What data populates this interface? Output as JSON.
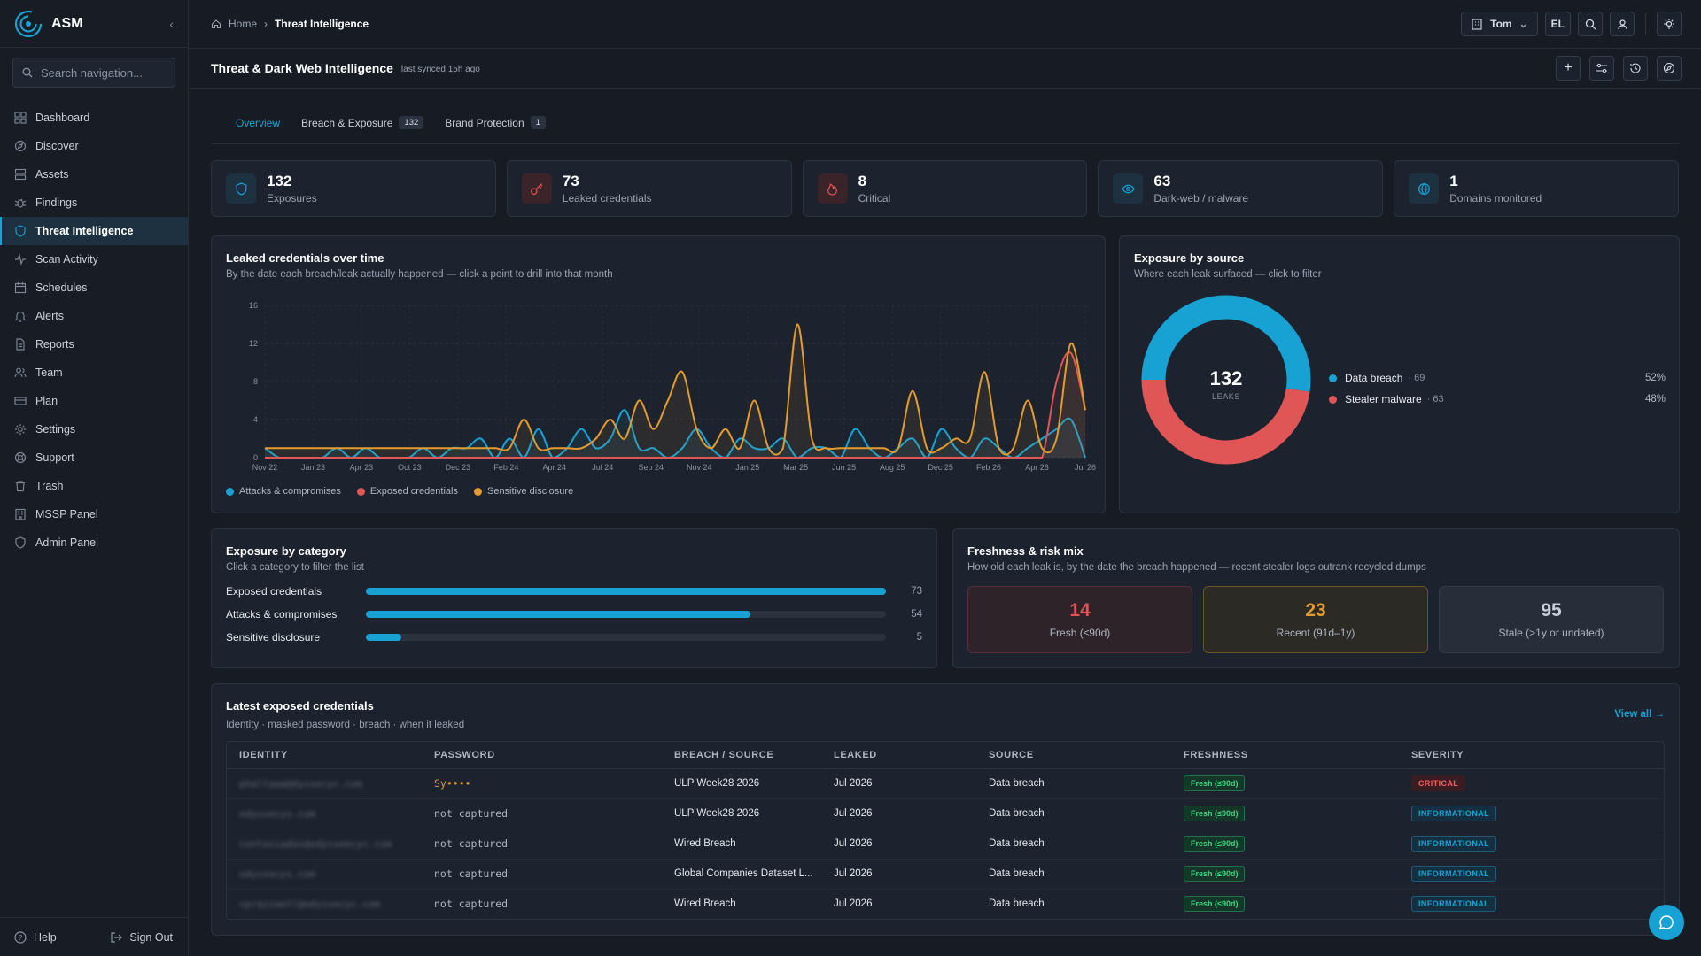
{
  "app": {
    "name": "ASM",
    "search_placeholder": "Search navigation..."
  },
  "sidebar": {
    "items": [
      {
        "label": "Dashboard",
        "icon": "grid-icon"
      },
      {
        "label": "Discover",
        "icon": "compass-icon"
      },
      {
        "label": "Assets",
        "icon": "server-icon"
      },
      {
        "label": "Findings",
        "icon": "bug-icon"
      },
      {
        "label": "Threat Intelligence",
        "icon": "shield-icon",
        "active": true
      },
      {
        "label": "Scan Activity",
        "icon": "activity-icon"
      },
      {
        "label": "Schedules",
        "icon": "calendar-icon"
      },
      {
        "label": "Alerts",
        "icon": "bell-icon"
      },
      {
        "label": "Reports",
        "icon": "file-icon"
      },
      {
        "label": "Team",
        "icon": "users-icon"
      },
      {
        "label": "Plan",
        "icon": "card-icon"
      },
      {
        "label": "Settings",
        "icon": "gear-icon"
      },
      {
        "label": "Support",
        "icon": "lifebuoy-icon"
      },
      {
        "label": "Trash",
        "icon": "trash-icon"
      },
      {
        "label": "MSSP Panel",
        "icon": "building-icon"
      },
      {
        "label": "Admin Panel",
        "icon": "shield-icon"
      }
    ],
    "help": "Help",
    "signout": "Sign Out"
  },
  "topbar": {
    "breadcrumb_home": "Home",
    "breadcrumb_current": "Threat Intelligence",
    "org": "Tom",
    "user_initials": "EL"
  },
  "page": {
    "title": "Threat & Dark Web Intelligence",
    "synced": "last synced 15h ago"
  },
  "tabs": [
    {
      "label": "Overview",
      "count": null,
      "active": true
    },
    {
      "label": "Breach & Exposure",
      "count": "132"
    },
    {
      "label": "Brand Protection",
      "count": "1"
    }
  ],
  "kpis": [
    {
      "value": "132",
      "label": "Exposures",
      "icon": "shield-icon",
      "color": "#17a2d3"
    },
    {
      "value": "73",
      "label": "Leaked credentials",
      "icon": "key-icon",
      "color": "#e05555"
    },
    {
      "value": "8",
      "label": "Critical",
      "icon": "flame-icon",
      "color": "#e05555"
    },
    {
      "value": "63",
      "label": "Dark-web / malware",
      "icon": "eye-icon",
      "color": "#17a2d3"
    },
    {
      "value": "1",
      "label": "Domains monitored",
      "icon": "globe-icon",
      "color": "#17a2d3"
    }
  ],
  "leaked_chart": {
    "title": "Leaked credentials over time",
    "subtitle": "By the date each breach/leak actually happened — click a point to drill into that month"
  },
  "source_chart": {
    "title": "Exposure by source",
    "subtitle": "Where each leak surfaced — click to filter",
    "center_value": "132",
    "center_label": "LEAKS",
    "items": [
      {
        "name": "Data breach",
        "count": "· 69",
        "pct": "52%",
        "color": "#17a2d3"
      },
      {
        "name": "Stealer malware",
        "count": "· 63",
        "pct": "48%",
        "color": "#e05555"
      }
    ]
  },
  "category": {
    "title": "Exposure by category",
    "subtitle": "Click a category to filter the list",
    "rows": [
      {
        "label": "Exposed credentials",
        "value": "73",
        "num": 73
      },
      {
        "label": "Attacks & compromises",
        "value": "54",
        "num": 54
      },
      {
        "label": "Sensitive disclosure",
        "value": "5",
        "num": 5
      }
    ]
  },
  "freshness": {
    "title": "Freshness & risk mix",
    "subtitle": "How old each leak is, by the date the breach happened — recent stealer logs outrank recycled dumps",
    "items": [
      {
        "value": "14",
        "label": "Fresh (≤90d)"
      },
      {
        "value": "23",
        "label": "Recent (91d–1y)"
      },
      {
        "value": "95",
        "label": "Stale (>1y or undated)"
      }
    ]
  },
  "latest": {
    "title": "Latest exposed credentials",
    "subtitle": "Identity · masked password · breach · when it leaked",
    "view_all": "View all →",
    "columns": [
      "IDENTITY",
      "PASSWORD",
      "BREACH / SOURCE",
      "LEAKED",
      "SOURCE",
      "FRESHNESS",
      "SEVERITY"
    ],
    "rows": [
      {
        "identity": "phaltaaa@dyssecyc.com",
        "password": "Sy••••",
        "breach": "ULP Week28 2026",
        "leaked": "Jul 2026",
        "source": "Data breach",
        "freshness": "Fresh (≤90d)",
        "severity": "CRITICAL"
      },
      {
        "identity": "odyssecys.com",
        "password": "not captured",
        "breach": "ULP Week28 2026",
        "leaked": "Jul 2026",
        "source": "Data breach",
        "freshness": "Fresh (≤90d)",
        "severity": "INFORMATIONAL"
      },
      {
        "identity": "contasiadas@odysseecyc.com",
        "password": "not captured",
        "breach": "Wired Breach",
        "leaked": "Jul 2026",
        "source": "Data breach",
        "freshness": "Fresh (≤90d)",
        "severity": "INFORMATIONAL"
      },
      {
        "identity": "odyssecys.com",
        "password": "not captured",
        "breach": "Global Companies Dataset L...",
        "leaked": "Jul 2026",
        "source": "Data breach",
        "freshness": "Fresh (≤90d)",
        "severity": "INFORMATIONAL"
      },
      {
        "identity": "vprazzaetl@odyssecyc.com",
        "password": "not captured",
        "breach": "Wired Breach",
        "leaked": "Jul 2026",
        "source": "Data breach",
        "freshness": "Fresh (≤90d)",
        "severity": "INFORMATIONAL"
      }
    ]
  },
  "chart_data": [
    {
      "type": "line",
      "title": "Leaked credentials over time",
      "ylim": [
        0,
        16
      ],
      "yticks": [
        "0",
        "4",
        "8",
        "12",
        "16"
      ],
      "xtick_labels": [
        "Nov 22",
        "Jan 23",
        "Apr 23",
        "Oct 23",
        "Dec 23",
        "Feb 24",
        "Apr 24",
        "Jul 24",
        "Sep 24",
        "Nov 24",
        "Jan 25",
        "Mar 25",
        "Jun 25",
        "Aug 25",
        "Dec 25",
        "Feb 26",
        "Apr 26",
        "Jul 26"
      ],
      "series": [
        {
          "name": "Attacks & compromises",
          "color": "#17a2d3",
          "values": [
            1,
            0,
            0,
            0,
            0,
            1,
            0,
            1,
            0,
            0,
            0,
            1,
            0,
            1,
            1,
            2,
            0,
            2,
            0,
            3,
            0,
            1,
            3,
            1,
            2,
            5,
            1,
            1,
            0,
            1,
            3,
            1,
            0,
            2,
            1,
            1,
            2,
            0,
            1,
            1,
            0,
            3,
            1,
            0,
            1,
            2,
            0,
            3,
            1,
            0,
            2,
            1,
            0,
            1,
            2,
            3,
            4,
            0
          ]
        },
        {
          "name": "Exposed credentials",
          "color": "#e05555",
          "values": [
            0,
            0,
            0,
            0,
            0,
            0,
            0,
            0,
            0,
            0,
            0,
            0,
            0,
            0,
            0,
            0,
            0,
            0,
            0,
            0,
            0,
            0,
            0,
            0,
            0,
            0,
            0,
            0,
            0,
            0,
            0,
            0,
            0,
            0,
            0,
            0,
            0,
            0,
            0,
            0,
            0,
            0,
            0,
            0,
            0,
            0,
            0,
            0,
            0,
            0,
            0,
            0,
            0,
            0,
            0,
            8,
            11,
            5
          ]
        },
        {
          "name": "Sensitive disclosure",
          "color": "#e39b2d",
          "values": [
            1,
            1,
            1,
            1,
            1,
            1,
            1,
            1,
            1,
            1,
            1,
            1,
            1,
            1,
            1,
            1,
            1,
            1,
            4,
            1,
            1,
            1,
            1,
            2,
            4,
            2,
            6,
            3,
            6,
            9,
            3,
            1,
            3,
            1,
            6,
            1,
            1,
            14,
            2,
            1,
            1,
            1,
            1,
            1,
            1,
            7,
            1,
            1,
            2,
            2,
            9,
            1,
            1,
            6,
            1,
            2,
            12,
            5
          ]
        }
      ]
    },
    {
      "type": "pie",
      "title": "Exposure by source",
      "categories": [
        "Data breach",
        "Stealer malware"
      ],
      "values": [
        69,
        63
      ]
    },
    {
      "type": "bar",
      "title": "Exposure by category",
      "categories": [
        "Exposed credentials",
        "Attacks & compromises",
        "Sensitive disclosure"
      ],
      "values": [
        73,
        54,
        5
      ]
    }
  ]
}
